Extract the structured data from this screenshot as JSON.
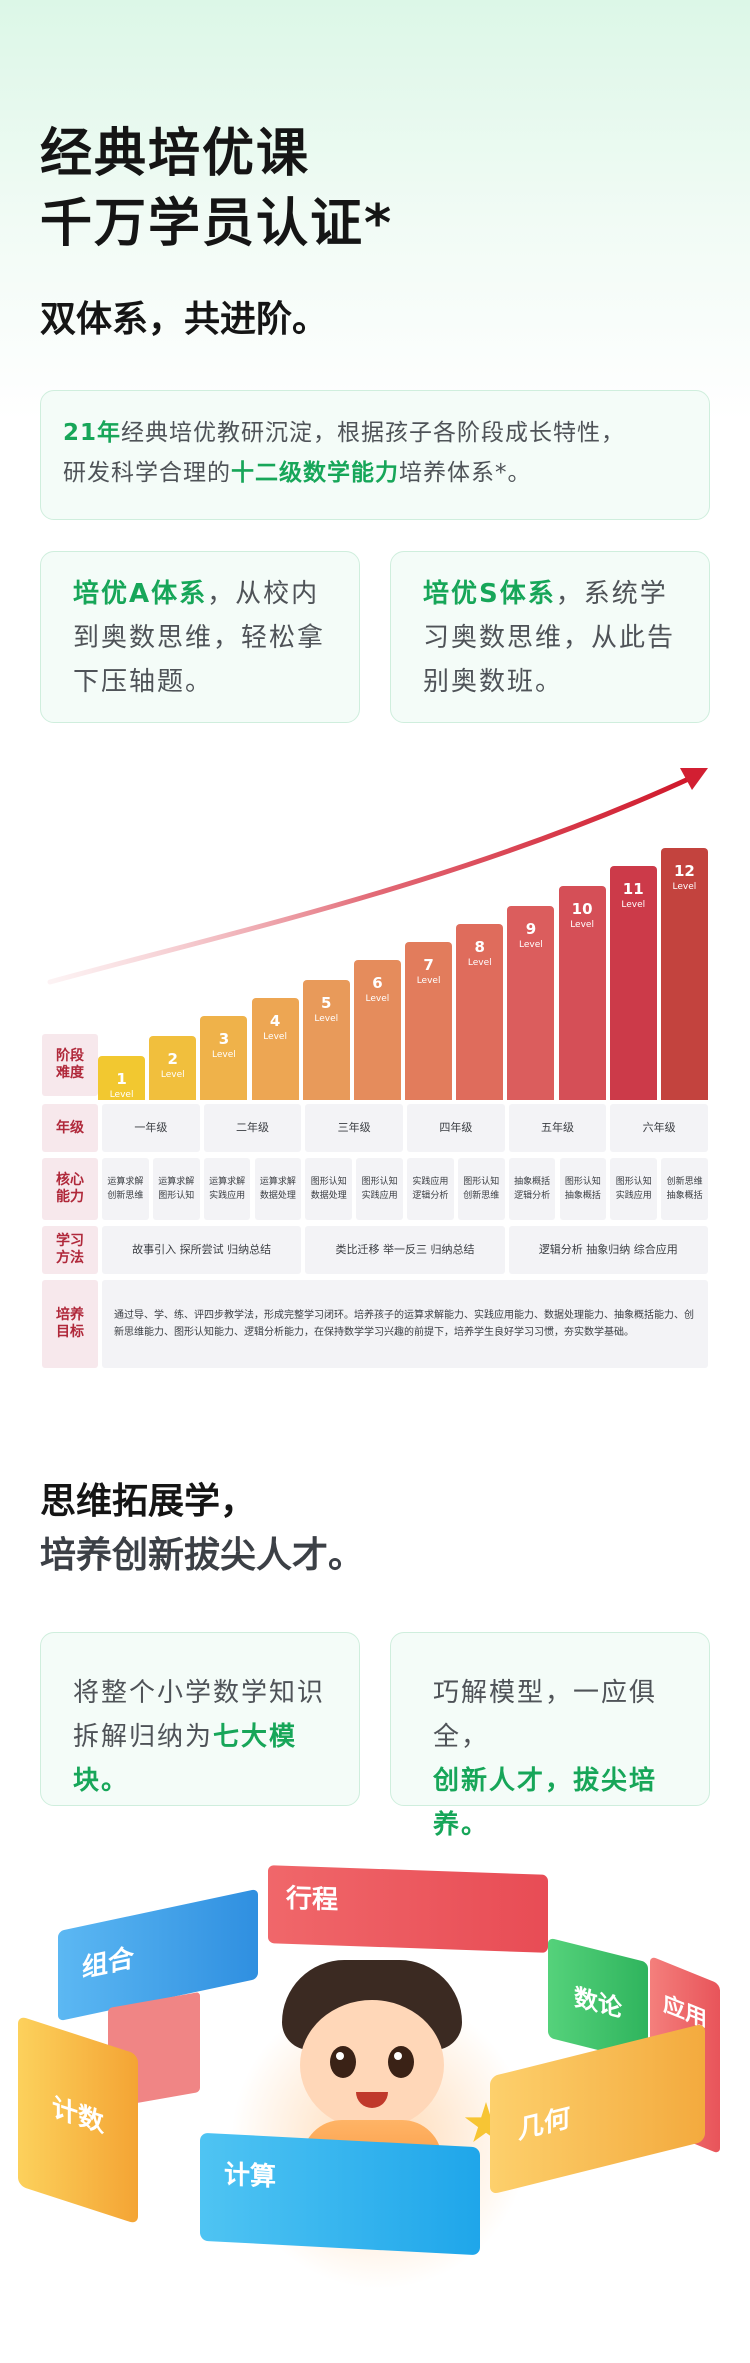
{
  "hero": {
    "title_line1": "经典培优课",
    "title_line2": "千万学员认证*",
    "subtitle": "双体系，共进阶。"
  },
  "intro_card": {
    "highlight1": "21年",
    "text1": "经典培优教研沉淀，根据孩子各阶段成长特性，",
    "text2": "研发科学合理的",
    "highlight2": "十二级数学能力",
    "text3": "培养体系*。"
  },
  "system_cards": [
    {
      "highlight": "培优A体系",
      "text": "，从校内到奥数思维，轻松拿下压轴题。"
    },
    {
      "highlight": "培优S体系",
      "text": "，系统学习奥数思维，从此告别奥数班。"
    }
  ],
  "levels": {
    "level_word": "Level",
    "items": [
      {
        "num": "1",
        "color": "#f2c830",
        "height": 44
      },
      {
        "num": "2",
        "color": "#f1bf3d",
        "height": 64
      },
      {
        "num": "3",
        "color": "#efb24a",
        "height": 84
      },
      {
        "num": "4",
        "color": "#eda653",
        "height": 102
      },
      {
        "num": "5",
        "color": "#e89a5a",
        "height": 120
      },
      {
        "num": "6",
        "color": "#e58c5c",
        "height": 140
      },
      {
        "num": "7",
        "color": "#e27c5c",
        "height": 158
      },
      {
        "num": "8",
        "color": "#df6c5c",
        "height": 176
      },
      {
        "num": "9",
        "color": "#db5d5d",
        "height": 194
      },
      {
        "num": "10",
        "color": "#d54f57",
        "height": 214
      },
      {
        "num": "11",
        "color": "#cc3a49",
        "height": 234
      },
      {
        "num": "12",
        "color": "#c3433e",
        "height": 252
      }
    ]
  },
  "table": {
    "row_labels": [
      "阶段\n难度",
      "年级",
      "核心\n能力",
      "学习\n方法",
      "培养\n目标"
    ],
    "grades": [
      "一年级",
      "二年级",
      "三年级",
      "四年级",
      "五年级",
      "六年级"
    ],
    "abilities": [
      "运算求解\n创新思维",
      "运算求解\n图形认知",
      "运算求解\n实践应用",
      "运算求解\n数据处理",
      "图形认知\n数据处理",
      "图形认知\n实践应用",
      "实践应用\n逻辑分析",
      "图形认知\n创新思维",
      "抽象概括\n逻辑分析",
      "图形认知\n抽象概括",
      "图形认知\n实践应用",
      "创新思维\n抽象概括"
    ],
    "methods": [
      "故事引入 探所尝试 归纳总结",
      "类比迁移 举一反三 归纳总结",
      "逻辑分析 抽象归纳 综合应用"
    ],
    "goal": "通过导、学、练、评四步教学法，形成完整学习闭环。培养孩子的运算求解能力、实践应用能力、数据处理能力、抽象概括能力、创新思维能力、图形认知能力、逻辑分析能力，在保持数学学习兴趣的前提下，培养学生良好学习习惯，夯实数学基础。"
  },
  "section2": {
    "title_line1": "思维拓展学，",
    "title_line2": "培养创新拔尖人才。"
  },
  "module_cards": [
    {
      "text": "将整个小学数学知识拆解归纳为",
      "highlight": "七大模块。"
    },
    {
      "text": "巧解模型，一应俱全，",
      "highlight": "创新人才，拔尖培养。"
    }
  ],
  "ring": {
    "modules": [
      "计数",
      "组合",
      "行程",
      "数论",
      "应用",
      "几何",
      "计算"
    ],
    "colors": {
      "count": "#f6b13c",
      "combo": "#3aa0ec",
      "travel": "#ee5b5e",
      "number": "#3fc267",
      "apply": "#ef6664",
      "geometry": "#f4b23e",
      "calc": "#30b2ec"
    }
  },
  "colors": {
    "accent_green": "#17a659",
    "arrow_red": "#d21f32"
  }
}
